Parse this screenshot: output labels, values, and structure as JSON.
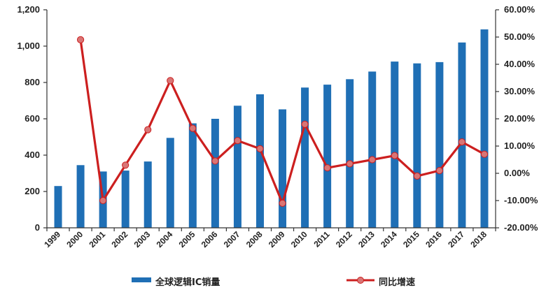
{
  "chart_data": {
    "type": "bar+line",
    "categories": [
      "1999",
      "2000",
      "2001",
      "2002",
      "2003",
      "2004",
      "2005",
      "2006",
      "2007",
      "2008",
      "2009",
      "2010",
      "2011",
      "2012",
      "2013",
      "2014",
      "2015",
      "2016",
      "2017",
      "2018"
    ],
    "series": [
      {
        "name": "全球逻辑IC销量",
        "type": "bar",
        "axis": "left",
        "color": "#1f6fb5",
        "values": [
          230,
          345,
          310,
          315,
          365,
          495,
          575,
          600,
          672,
          735,
          652,
          772,
          788,
          818,
          860,
          915,
          905,
          912,
          1020,
          1092
        ]
      },
      {
        "name": "同比增速",
        "type": "line",
        "axis": "right",
        "color": "#cc1f1f",
        "marker_color": "#d97575",
        "values": [
          null,
          49.0,
          -10.0,
          3.0,
          16.0,
          34.0,
          16.5,
          4.5,
          12.0,
          9.0,
          -11.0,
          18.0,
          2.0,
          3.5,
          5.0,
          6.5,
          -1.0,
          1.0,
          11.5,
          7.0
        ]
      }
    ],
    "left_axis": {
      "ylim": [
        0,
        1200
      ],
      "ticks": [
        0,
        200,
        400,
        600,
        800,
        1000,
        1200
      ],
      "tick_labels": [
        "0",
        "200",
        "400",
        "600",
        "800",
        "1,000",
        "1,200"
      ]
    },
    "right_axis": {
      "ylim": [
        -20,
        60
      ],
      "ticks": [
        -20,
        -10,
        0,
        10,
        20,
        30,
        40,
        50,
        60
      ],
      "tick_labels": [
        "-20.00%",
        "-10.00%",
        "0.00%",
        "10.00%",
        "20.00%",
        "30.00%",
        "40.00%",
        "50.00%",
        "60.00%"
      ]
    },
    "legend": {
      "placement": "bottom",
      "items": [
        {
          "label": "全球逻辑IC销量",
          "symbol": "bar",
          "color": "#1f6fb5"
        },
        {
          "label": "同比增速",
          "symbol": "line-marker",
          "color": "#cc1f1f"
        }
      ]
    },
    "grid": false
  }
}
